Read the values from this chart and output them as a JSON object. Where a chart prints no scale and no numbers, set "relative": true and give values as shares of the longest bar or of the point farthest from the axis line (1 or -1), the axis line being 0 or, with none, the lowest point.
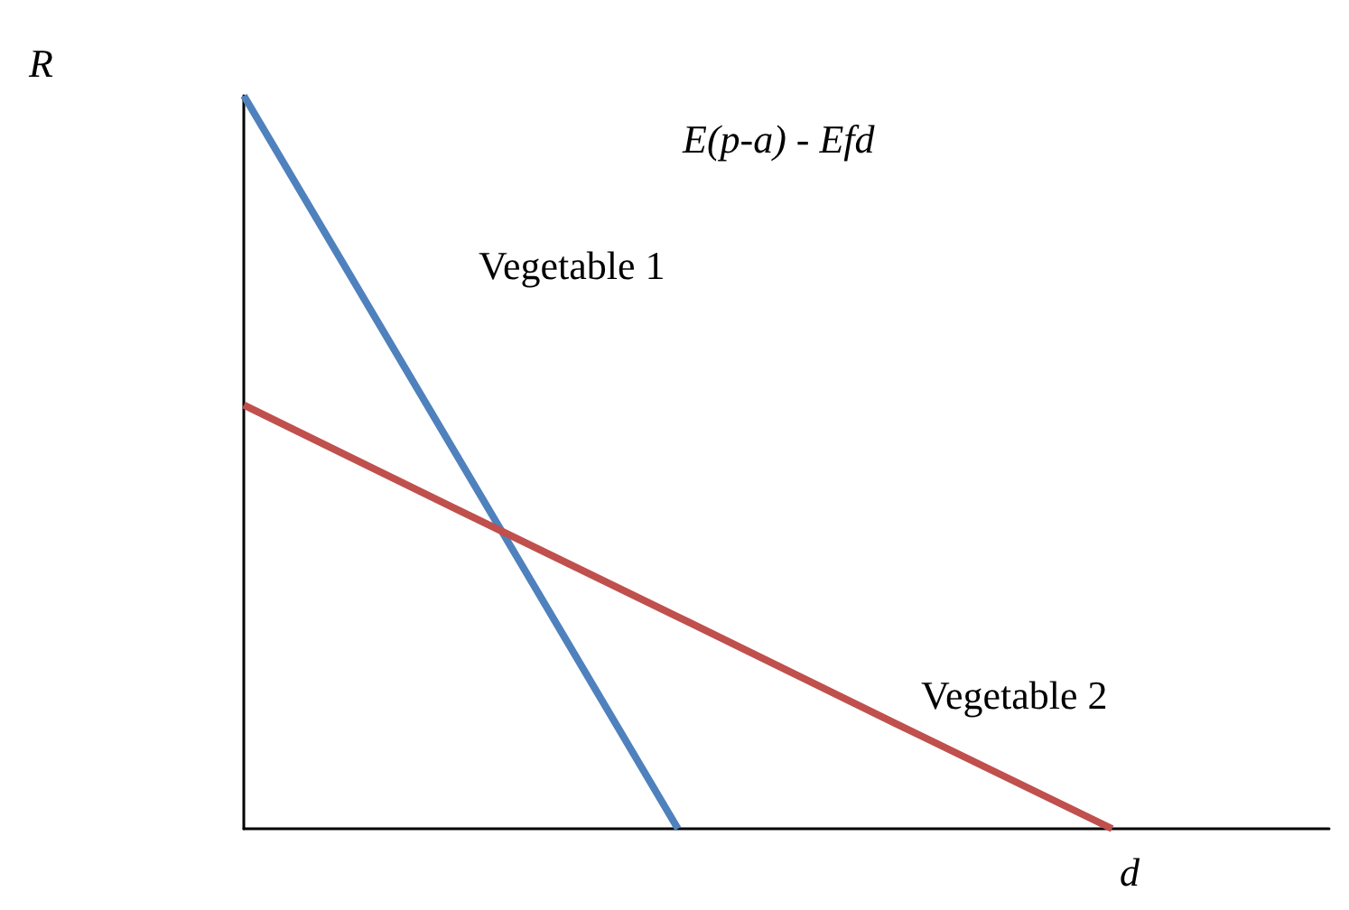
{
  "chart_data": {
    "type": "line",
    "relative": true,
    "xlabel": "d",
    "ylabel": "R",
    "annotations": [
      "E(p-a) - Efd"
    ],
    "categories": [
      null,
      null,
      null,
      null,
      null,
      null
    ],
    "series": [
      {
        "name": "Vegetable 1",
        "color": "#4f81bd",
        "values": [
          1,
          0.5,
          0,
          null,
          null,
          null
        ]
      },
      {
        "name": "Vegetable 2",
        "color": "#c0504d",
        "values": [
          0.578,
          0.433,
          0.289,
          0.144,
          0,
          null
        ]
      }
    ],
    "legend": false,
    "grid": false,
    "marker": "none",
    "line_style": "solid"
  }
}
